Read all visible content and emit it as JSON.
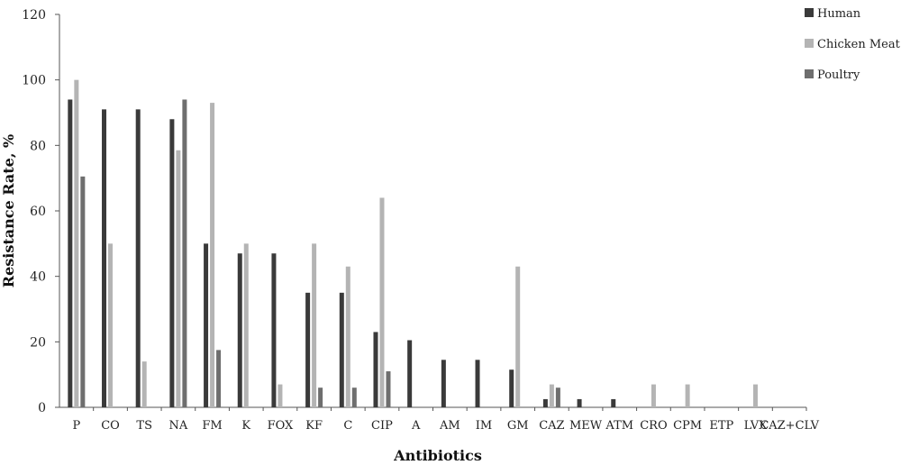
{
  "chart_data": {
    "type": "bar",
    "categories": [
      "P",
      "CO",
      "TS",
      "NA",
      "FM",
      "K",
      "FOX",
      "KF",
      "C",
      "CIP",
      "A",
      "AM",
      "IM",
      "GM",
      "CAZ",
      "MEW",
      "ATM",
      "CRO",
      "CPM",
      "ETP",
      "LVX",
      "CAZ+CLV"
    ],
    "series": [
      {
        "name": "Human",
        "color": "#3a3a3a",
        "values": [
          94,
          91,
          91,
          88,
          50,
          47,
          47,
          35,
          35,
          23,
          20.5,
          14.5,
          14.5,
          11.5,
          2.5,
          2.5,
          2.5,
          0,
          0,
          0,
          0,
          0
        ]
      },
      {
        "name": "Chicken Meat",
        "color": "#b4b4b4",
        "values": [
          100,
          50,
          14,
          78.5,
          93,
          50,
          7,
          50,
          43,
          64,
          0,
          0,
          0,
          43,
          7,
          0,
          0,
          7,
          7,
          0,
          7,
          0
        ]
      },
      {
        "name": "Poultry",
        "color": "#6e6e6e",
        "values": [
          70.5,
          0,
          0,
          94,
          17.5,
          0,
          0,
          6,
          6,
          11,
          0,
          0,
          0,
          0,
          6,
          0,
          0,
          0,
          0,
          0,
          0,
          0
        ]
      }
    ],
    "yticks": [
      0,
      20,
      40,
      60,
      80,
      100,
      120
    ],
    "ylim": [
      0,
      120
    ],
    "xlabel": "Antibiotics",
    "ylabel": "Resistance Rate, %",
    "legend_position": "top-right",
    "grid": false
  }
}
